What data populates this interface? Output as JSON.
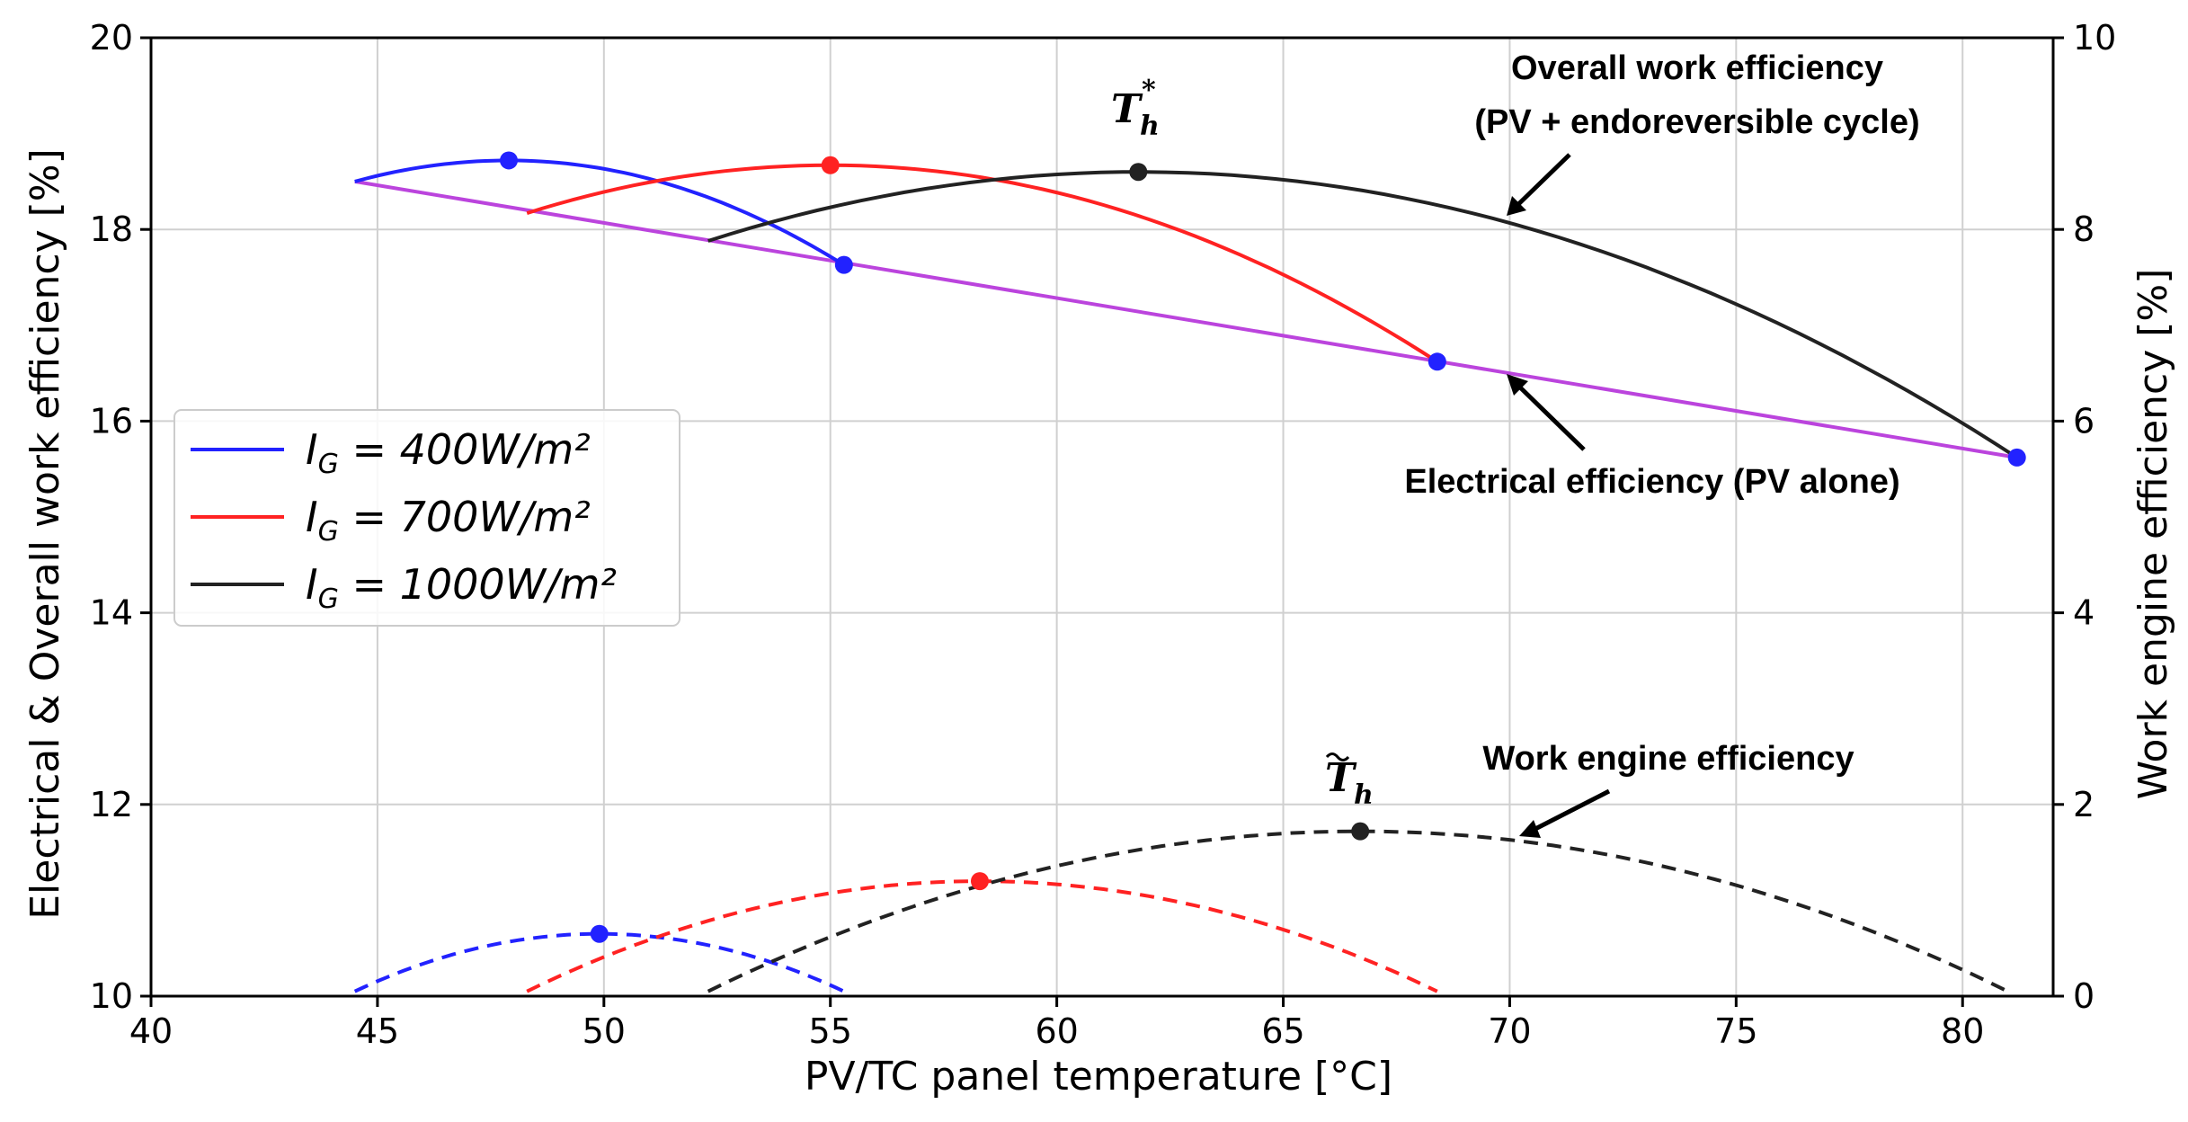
{
  "chart_data": {
    "type": "line",
    "xlabel": "PV/TC panel temperature [°C]",
    "ylabel_left": "Electrical & Overall work efficiency [%]",
    "ylabel_right": "Work engine efficiency [%]",
    "xlim": [
      40,
      82
    ],
    "ylim_left": [
      10,
      20
    ],
    "ylim_right": [
      0,
      10
    ],
    "x_ticks": [
      40,
      45,
      50,
      55,
      60,
      65,
      70,
      75,
      80
    ],
    "y_left_ticks": [
      10,
      12,
      14,
      16,
      18,
      20
    ],
    "y_right_ticks": [
      0,
      2,
      4,
      6,
      8,
      10
    ],
    "grid": true,
    "legend_position": "center-left",
    "electrical_line": {
      "name": "Electrical efficiency (PV alone)",
      "color": "#bb44dd",
      "x": [
        44.5,
        81.2
      ],
      "y": [
        18.5,
        15.62
      ]
    },
    "series": [
      {
        "name": "I_G = 400W/m²",
        "color": "#2222ff",
        "overall": {
          "x0": 44.5,
          "y0": 18.5,
          "xmax": 47.9,
          "ymax": 18.72,
          "x1": 55.3,
          "y1": 17.63
        },
        "engine": {
          "x0": 44.5,
          "y0": 0.05,
          "xmax": 49.9,
          "ymax": 0.65,
          "x1": 55.3,
          "y1": 0.05
        }
      },
      {
        "name": "I_G = 700W/m²",
        "color": "#ff2222",
        "overall": {
          "x0": 48.3,
          "y0": 18.17,
          "xmax": 55.0,
          "ymax": 18.67,
          "x1": 68.4,
          "y1": 16.62
        },
        "engine": {
          "x0": 48.3,
          "y0": 0.05,
          "xmax": 58.3,
          "ymax": 1.2,
          "x1": 68.4,
          "y1": 0.05
        }
      },
      {
        "name": "I_G = 1000W/m²",
        "color": "#222222",
        "overall": {
          "x0": 52.3,
          "y0": 17.88,
          "xmax": 61.8,
          "ymax": 18.6,
          "x1": 81.2,
          "y1": 15.62
        },
        "engine": {
          "x0": 52.3,
          "y0": 0.05,
          "xmax": 66.7,
          "ymax": 1.72,
          "x1": 81.0,
          "y1": 0.05
        }
      }
    ],
    "legend": [
      {
        "prefix": "I",
        "sub": "G",
        "rest": " = 400W/m²",
        "color": "#2222ff"
      },
      {
        "prefix": "I",
        "sub": "G",
        "rest": " = 700W/m²",
        "color": "#ff2222"
      },
      {
        "prefix": "I",
        "sub": "G",
        "rest": " = 1000W/m²",
        "color": "#222222"
      }
    ],
    "annotations": {
      "overall_line1": "Overall work efficiency",
      "overall_line2": "(PV + endoreversible cycle)",
      "electrical": "Electrical efficiency (PV alone)",
      "engine": "Work engine efficiency",
      "th_star": "T",
      "th_star_sup": "*",
      "th_star_sub": "h",
      "th_tilde": "T",
      "th_tilde_sub": "h"
    }
  }
}
